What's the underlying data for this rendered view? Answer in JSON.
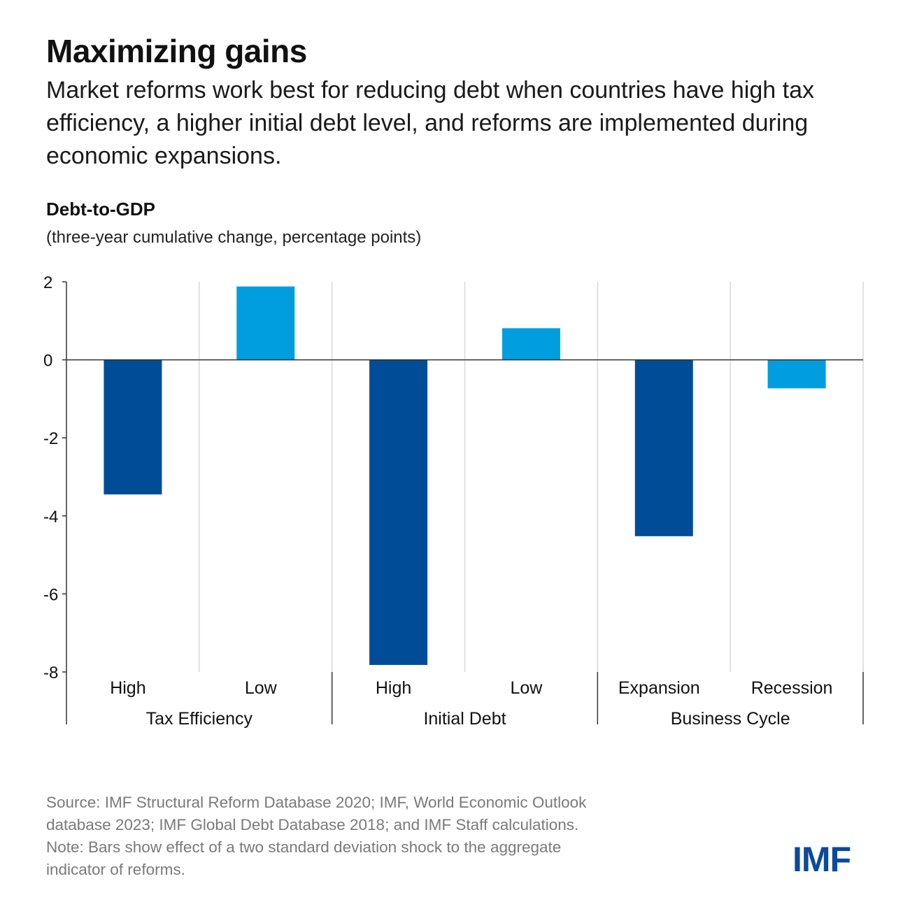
{
  "header": {
    "title": "Maximizing gains",
    "subtitle": "Market reforms work best for reducing debt when countries have high tax efficiency, a higher initial debt level, and reforms are implemented during economic expansions."
  },
  "chart_data": {
    "type": "bar",
    "ylabel": "Debt-to-GDP",
    "ysublabel": "(three-year cumulative change, percentage points)",
    "ylim": [
      -8,
      2
    ],
    "yticks": [
      2,
      0,
      -2,
      -4,
      -6,
      -8
    ],
    "ytick_labels": [
      "2",
      "0",
      "-2",
      "-4",
      "-6",
      "-8"
    ],
    "groups": [
      {
        "label": "Tax Efficiency",
        "categories": [
          "High",
          "Low"
        ],
        "values": [
          -3.45,
          1.88
        ]
      },
      {
        "label": "Initial Debt",
        "categories": [
          "High",
          "Low"
        ],
        "values": [
          -7.82,
          0.81
        ]
      },
      {
        "label": "Business Cycle",
        "categories": [
          "Expansion",
          "Recession"
        ],
        "values": [
          -4.52,
          -0.73
        ]
      }
    ],
    "colors": {
      "first_bar": "#004c97",
      "second_bar": "#009ddf"
    },
    "grid": true
  },
  "footer": {
    "source_line1": "Source: IMF Structural Reform Database 2020; IMF, World Economic Outlook",
    "source_line2": "database 2023; IMF Global Debt Database 2018; and IMF Staff calculations.",
    "note_line1": "Note: Bars show effect of a two standard deviation shock to the aggregate",
    "note_line2": "indicator of reforms.",
    "logo": "IMF"
  }
}
